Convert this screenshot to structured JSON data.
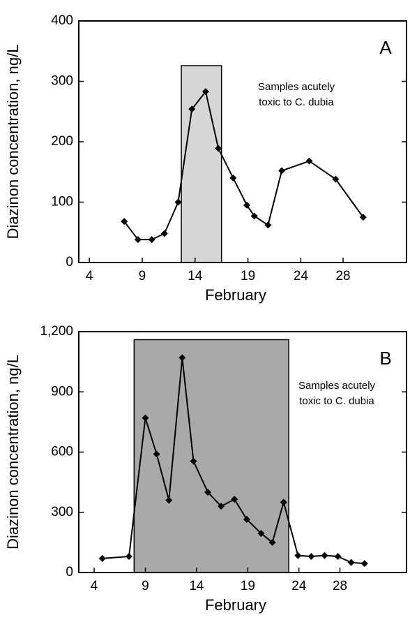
{
  "chart_data": [
    {
      "type": "line",
      "panel_label": "A",
      "x_label": "February",
      "y_label": "Diazinon concentration, ng/L",
      "annotation": [
        "Samples acutely",
        "toxic to C. dubia"
      ],
      "color": "#000000",
      "shaded_region": {
        "x": [
          12.7,
          16.5
        ],
        "top": 326,
        "color": "#d6d6d6"
      },
      "x": [
        7.3,
        8.6,
        9.9,
        11.1,
        12.4,
        13.7,
        15.0,
        16.2,
        17.6,
        18.9,
        19.6,
        20.9,
        22.2,
        24.8,
        27.3,
        29.9
      ],
      "values": [
        68,
        38,
        38,
        48,
        100,
        254,
        283,
        189,
        140,
        95,
        77,
        62,
        152,
        168,
        138,
        75
      ],
      "xlim": [
        3,
        34
      ],
      "ylim": [
        0,
        400
      ],
      "xticks": [
        4,
        9,
        14,
        19,
        24,
        28
      ],
      "yticks": [
        0,
        100,
        200,
        300,
        400
      ]
    },
    {
      "type": "line",
      "panel_label": "B",
      "x_label": "February",
      "y_label": "Diazinon concentration, ng/L",
      "annotation": [
        "Samples acutely",
        "toxic to C. dubia"
      ],
      "color": "#000000",
      "shaded_region": {
        "x": [
          7.9,
          23.0
        ],
        "top": 1160,
        "color": "#a9a9a9"
      },
      "x": [
        4.8,
        7.4,
        9.0,
        10.1,
        11.3,
        12.6,
        13.7,
        15.1,
        16.4,
        17.7,
        18.9,
        20.3,
        21.4,
        22.5,
        23.9,
        25.2,
        26.5,
        27.8,
        29.1,
        30.4
      ],
      "values": [
        70,
        80,
        770,
        590,
        360,
        1070,
        555,
        400,
        330,
        365,
        265,
        195,
        150,
        350,
        85,
        80,
        85,
        80,
        50,
        45
      ],
      "xlim": [
        2.5,
        34.5
      ],
      "ylim": [
        0,
        1200
      ],
      "xticks": [
        4,
        9,
        14,
        19,
        24,
        28
      ],
      "yticks": [
        0,
        300,
        600,
        900,
        {
          "value": 1200,
          "label": "1,200"
        }
      ]
    }
  ]
}
